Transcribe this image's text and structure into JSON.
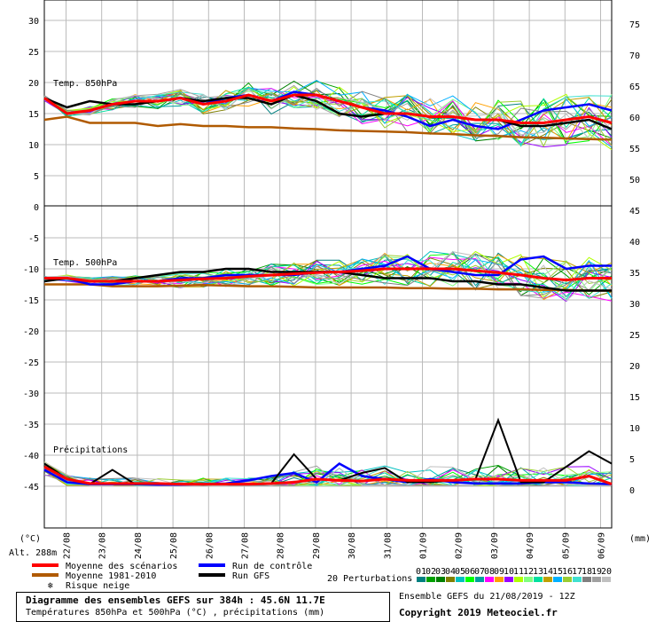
{
  "chart_data": {
    "type": "line",
    "left_axis": {
      "label": "(°C)",
      "ticks": [
        "30",
        "25",
        "20",
        "15",
        "10",
        "5",
        "0",
        "-5",
        "-10",
        "-15",
        "-20",
        "-25",
        "-30",
        "-35",
        "-40",
        "-45"
      ]
    },
    "right_axis": {
      "label": "(mm)",
      "upper_ticks": [
        "75",
        "70",
        "65",
        "60",
        "55",
        "50"
      ],
      "lower_ticks": [
        "45",
        "40",
        "35",
        "30",
        "25",
        "20",
        "15",
        "10",
        "5",
        "0"
      ]
    },
    "x_ticks": [
      "22/08",
      "23/08",
      "24/08",
      "25/08",
      "26/08",
      "27/08",
      "28/08",
      "29/08",
      "30/08",
      "31/08",
      "01/09",
      "02/09",
      "03/09",
      "04/09",
      "05/09",
      "06/09"
    ],
    "altitude_label": "Alt. 288m",
    "panels": [
      {
        "name": "Temp. 850hPa",
        "unit": "°C"
      },
      {
        "name": "Temp. 500hPa",
        "unit": "°C"
      },
      {
        "name": "Précipitations",
        "unit": "mm"
      }
    ],
    "series": [
      {
        "name": "Moyenne des scénarios",
        "color": "#ff0000",
        "t850": [
          17.5,
          15,
          15.5,
          16.5,
          17,
          17,
          17.5,
          16.5,
          17,
          18,
          17,
          18,
          18,
          17,
          16,
          15,
          15,
          14.5,
          14.5,
          14,
          14,
          13.5,
          13.5,
          14,
          14.5,
          13.5
        ],
        "t500": [
          -11.5,
          -11.5,
          -12,
          -12,
          -12,
          -12,
          -11.8,
          -11.6,
          -11.5,
          -11.2,
          -11,
          -10.8,
          -10.6,
          -10.5,
          -10.3,
          -10,
          -10,
          -10,
          -10,
          -10.3,
          -10.6,
          -11,
          -11.5,
          -11.8,
          -11.5,
          -11.5
        ],
        "precip": [
          3,
          1,
          0.3,
          0.3,
          0.3,
          0.3,
          0.2,
          0.2,
          0.2,
          0.2,
          0.3,
          0.5,
          1,
          0.8,
          0.7,
          1,
          0.8,
          0.8,
          0.8,
          1,
          1,
          0.8,
          0.8,
          0.8,
          1.5,
          0.2
        ]
      },
      {
        "name": "Run de contrôle",
        "color": "#0000ff",
        "t850": [
          17.5,
          15,
          15.5,
          16.5,
          17,
          17,
          17.5,
          16.5,
          17.5,
          18,
          17,
          18.5,
          18,
          17,
          16,
          15.5,
          14.5,
          13,
          14,
          13,
          12.5,
          14,
          15.5,
          16,
          16.5,
          15.5
        ],
        "t500": [
          -11.5,
          -11.5,
          -12.5,
          -12.5,
          -12,
          -12,
          -11.5,
          -11.5,
          -11,
          -11,
          -11,
          -11,
          -10.5,
          -10.5,
          -10,
          -9.5,
          -8,
          -10,
          -10.5,
          -11,
          -11,
          -8.5,
          -8,
          -10,
          -9.5,
          -9.5
        ],
        "precip": [
          2.5,
          0.5,
          0.2,
          0.2,
          0.2,
          0.1,
          0.1,
          0.2,
          0.3,
          0.8,
          1.5,
          2,
          0.5,
          3.5,
          1.5,
          1,
          0.5,
          1,
          0.5,
          0.3,
          0.3,
          0.3,
          0.5,
          0.5,
          0.3,
          0.2
        ]
      },
      {
        "name": "Moyenne 1981-2010",
        "color": "#b05a00",
        "t850": [
          14,
          14.5,
          13.5,
          13.5,
          13.5,
          13,
          13.3,
          13,
          13,
          12.8,
          12.8,
          12.6,
          12.5,
          12.3,
          12.2,
          12.1,
          12,
          11.8,
          11.7,
          11.5,
          11.4,
          11.2,
          11.1,
          11,
          10.9,
          10.8
        ],
        "t500": [
          -12.5,
          -12.5,
          -12.5,
          -12.8,
          -12.8,
          -12.8,
          -12.7,
          -12.6,
          -12.7,
          -12.8,
          -12.8,
          -12.9,
          -13,
          -13,
          -13,
          -13,
          -13.1,
          -13.1,
          -13.2,
          -13.2,
          -13.3,
          -13.3,
          -13.4,
          -13.4,
          -13.5,
          -13.5
        ],
        "precip": []
      },
      {
        "name": "Run GFS",
        "color": "#000000",
        "t850": [
          17.5,
          16,
          17,
          16.5,
          16.5,
          17,
          17.5,
          17,
          17.5,
          17.5,
          16.5,
          18,
          17,
          15,
          14.5,
          15,
          15,
          14.5,
          14.5,
          14,
          14,
          13,
          13,
          13.5,
          14,
          12.5
        ],
        "t500": [
          -12,
          -11.5,
          -12,
          -12,
          -11.5,
          -11,
          -10.5,
          -10.5,
          -10,
          -10,
          -10.5,
          -10.5,
          -10.5,
          -10.5,
          -11,
          -11.5,
          -11.5,
          -11.5,
          -12,
          -12,
          -12.5,
          -12.5,
          -13,
          -13.5,
          -13.5,
          -13.5
        ],
        "precip": [
          3.5,
          1,
          0.2,
          2.5,
          0.2,
          0.3,
          0.2,
          0.1,
          0.2,
          0.2,
          0.3,
          5,
          1,
          0.8,
          2,
          2.8,
          0.5,
          0.5,
          0.8,
          1,
          10.5,
          0.5,
          0.5,
          3,
          5.5,
          3.5
        ]
      }
    ],
    "legend": [
      {
        "label": "Moyenne des scénarios",
        "color": "#ff0000"
      },
      {
        "label": "Moyenne 1981-2010",
        "color": "#b05a00"
      },
      {
        "label": "Risque neige",
        "color": "#3399ff",
        "icon": "snowflake-icon"
      },
      {
        "label": "Run de contrôle",
        "color": "#0000ff"
      },
      {
        "label": "Run GFS",
        "color": "#000000"
      }
    ],
    "perturbations": {
      "label": "20 Perturbations",
      "ids": [
        "01",
        "02",
        "03",
        "04",
        "05",
        "06",
        "07",
        "08",
        "09",
        "10",
        "11",
        "12",
        "13",
        "14",
        "15",
        "16",
        "17",
        "18",
        "19",
        "20"
      ],
      "colors": [
        "#008080",
        "#00a000",
        "#008000",
        "#808000",
        "#00c0c0",
        "#00ff00",
        "#00a0a0",
        "#ff00ff",
        "#ffa000",
        "#9900ff",
        "#b0ff00",
        "#80ff80",
        "#00e0a0",
        "#c0a000",
        "#00b0ff",
        "#9acd32",
        "#40e0d0",
        "#808080",
        "#a0a0a0",
        "#c0c0c0"
      ]
    }
  },
  "footer": {
    "title": "Diagramme des ensembles GEFS sur 384h : 45.6N 11.7E",
    "subtitle": "Températures 850hPa et 500hPa (°C) , précipitations (mm)",
    "ensemble_info": "Ensemble GEFS du 21/08/2019 - 12Z",
    "copyright": "Copyright 2019 Meteociel.fr"
  }
}
